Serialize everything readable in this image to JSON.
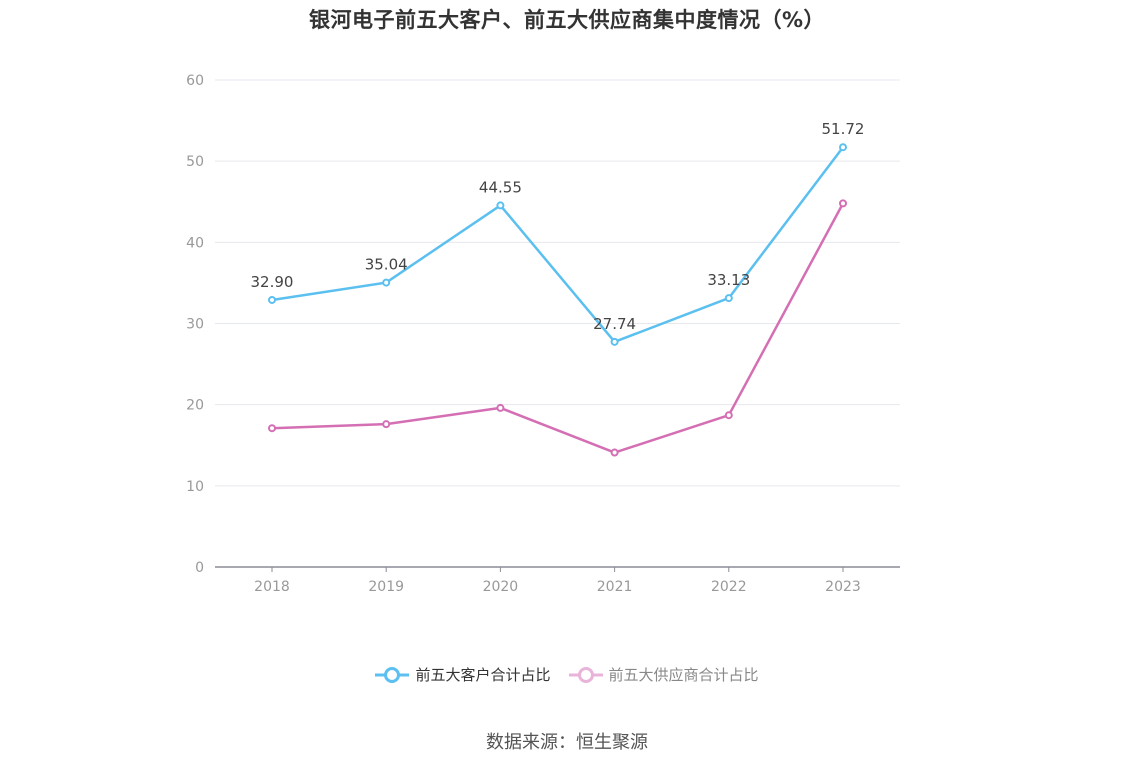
{
  "title": "银河电子前五大客户、前五大供应商集中度情况（%）",
  "source": "数据来源：恒生聚源",
  "chart_data": {
    "type": "line",
    "title": "银河电子前五大客户、前五大供应商集中度情况（%）",
    "x": [
      "2018",
      "2019",
      "2020",
      "2021",
      "2022",
      "2023"
    ],
    "ylim": [
      0,
      60
    ],
    "yticks": [
      0,
      10,
      20,
      30,
      40,
      50,
      60
    ],
    "grid": true,
    "legend_position": "bottom",
    "series": [
      {
        "name": "前五大客户合计占比",
        "color": "#5bc0f0",
        "values": [
          32.9,
          35.04,
          44.55,
          27.74,
          33.13,
          51.72
        ],
        "labels": [
          "32.90",
          "35.04",
          "44.55",
          "27.74",
          "33.13",
          "51.72"
        ]
      },
      {
        "name": "前五大供应商合计占比",
        "color": "#d46fb4",
        "values": [
          17.1,
          17.6,
          19.6,
          14.1,
          18.7,
          44.8
        ],
        "labels": []
      }
    ]
  }
}
